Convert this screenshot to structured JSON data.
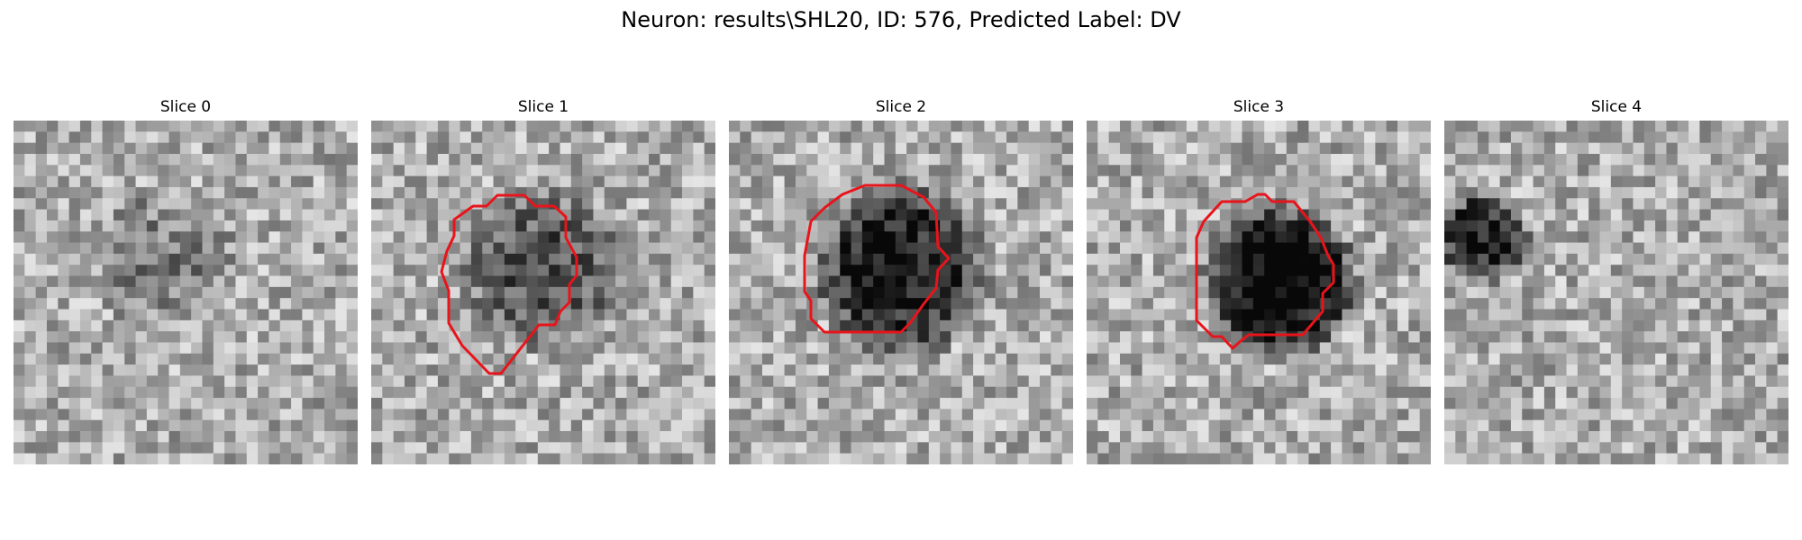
{
  "figure": {
    "title": "Neuron: results\\SHL20, ID: 576, Predicted Label: DV",
    "contour_color": "#e8141b"
  },
  "slices": [
    {
      "label": "Slice 0",
      "has_contour": false,
      "dark_blob": "faint-center",
      "seed": 11
    },
    {
      "label": "Slice 1",
      "has_contour": true,
      "dark_blob": "mid-gray",
      "seed": 23
    },
    {
      "label": "Slice 2",
      "has_contour": true,
      "dark_blob": "dark",
      "seed": 37
    },
    {
      "label": "Slice 3",
      "has_contour": true,
      "dark_blob": "very-dark",
      "seed": 41
    },
    {
      "label": "Slice 4",
      "has_contour": false,
      "dark_blob": "upper-left",
      "seed": 53
    }
  ]
}
